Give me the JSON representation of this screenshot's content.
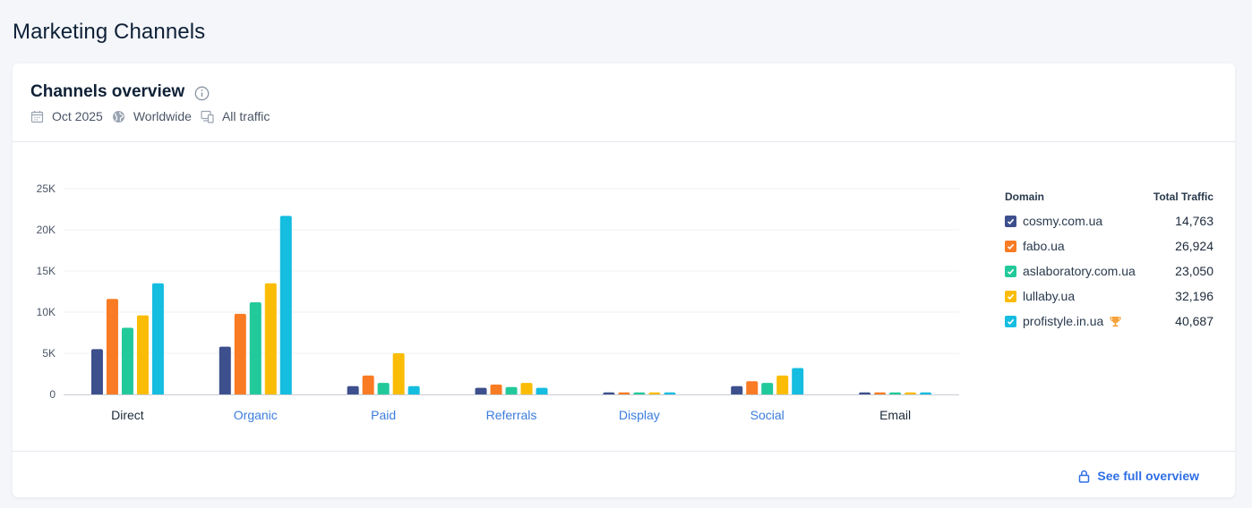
{
  "page": {
    "title": "Marketing Channels"
  },
  "card": {
    "title": "Channels overview",
    "meta": {
      "date": "Oct 2025",
      "region": "Worldwide",
      "traffic": "All traffic"
    }
  },
  "legend": {
    "header_domain": "Domain",
    "header_total": "Total Traffic"
  },
  "footer": {
    "link_label": "See full overview"
  },
  "colors": {
    "link": "#2f6fe4",
    "grid": "#eef1f5",
    "axis": "#c7cdd6"
  },
  "chart_data": {
    "type": "bar",
    "categories": [
      "Direct",
      "Organic",
      "Paid",
      "Referrals",
      "Display",
      "Social",
      "Email"
    ],
    "category_link": [
      false,
      true,
      true,
      true,
      true,
      true,
      false
    ],
    "yticks": [
      "0",
      "5K",
      "10K",
      "15K",
      "20K",
      "25K"
    ],
    "ylim": [
      0,
      25000
    ],
    "grid": true,
    "legend_position": "right",
    "series": [
      {
        "name": "cosmy.com.ua",
        "color": "#3d4f8c",
        "total": "14,763",
        "values": [
          5500,
          5800,
          1000,
          800,
          250,
          1000,
          250
        ]
      },
      {
        "name": "fabo.ua",
        "color": "#f97b23",
        "total": "26,924",
        "values": [
          11600,
          9800,
          2300,
          1200,
          250,
          1600,
          250
        ]
      },
      {
        "name": "aslaboratory.com.ua",
        "color": "#22c99a",
        "total": "23,050",
        "values": [
          8100,
          11200,
          1400,
          900,
          250,
          1400,
          250
        ]
      },
      {
        "name": "lullaby.ua",
        "color": "#fbbc05",
        "total": "32,196",
        "values": [
          9600,
          13500,
          5000,
          1400,
          250,
          2300,
          250
        ]
      },
      {
        "name": "profistyle.in.ua",
        "color": "#15bde0",
        "total": "40,687",
        "values": [
          13500,
          21700,
          1000,
          800,
          250,
          3200,
          250
        ],
        "winner": true
      }
    ]
  }
}
